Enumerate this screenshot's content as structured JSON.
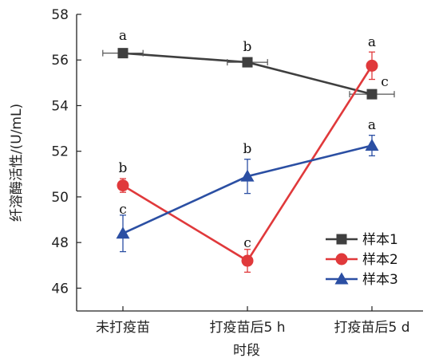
{
  "chart_data": {
    "type": "line",
    "categories": [
      "未打疫苗",
      "打疫苗后5 h",
      "打疫苗后5 d"
    ],
    "xlabel": "时段",
    "ylabel": "纤溶酶活性/(U/mL)",
    "ylim": [
      45,
      58
    ],
    "yticks": [
      46,
      48,
      50,
      52,
      54,
      56,
      58
    ],
    "grid": false,
    "legend_position": "bottom-right",
    "series": [
      {
        "name": "样本1",
        "color": "#3f3f3f",
        "marker": "square",
        "values": [
          56.3,
          55.9,
          54.5
        ],
        "xerr": [
          0.18,
          0.18,
          0.2
        ],
        "yerr": [
          0.0,
          0.0,
          0.0
        ],
        "letters": [
          "a",
          "b",
          "c"
        ]
      },
      {
        "name": "样本2",
        "color": "#e0393b",
        "marker": "circle",
        "values": [
          50.5,
          47.2,
          55.75
        ],
        "xerr": [
          0,
          0,
          0
        ],
        "yerr": [
          0.3,
          0.5,
          0.6
        ],
        "letters": [
          "b",
          "c",
          "a"
        ]
      },
      {
        "name": "样本3",
        "color": "#2b4fa3",
        "marker": "triangle",
        "values": [
          48.4,
          50.9,
          52.25
        ],
        "xerr": [
          0,
          0,
          0
        ],
        "yerr": [
          0.8,
          0.75,
          0.45
        ],
        "letters": [
          "c",
          "b",
          "a"
        ]
      }
    ]
  }
}
